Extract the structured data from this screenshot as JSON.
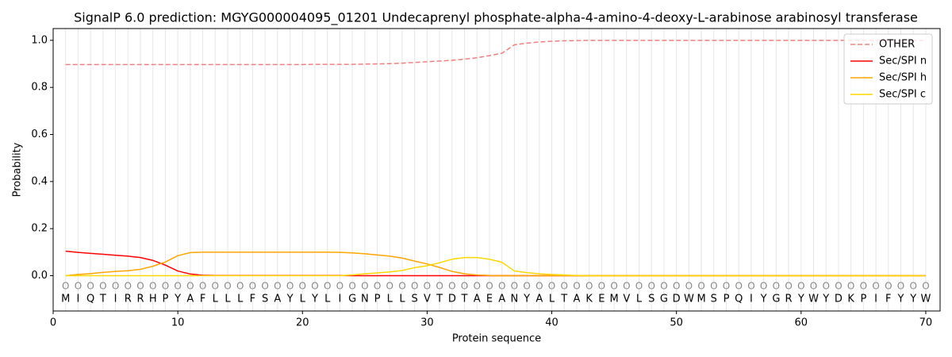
{
  "chart_data": {
    "type": "line",
    "title": "SignalP 6.0 prediction: MGYG000004095_01201 Undecaprenyl phosphate-alpha-4-amino-4-deoxy-L-arabinose arabinosyl transferase",
    "x_label": "Protein sequence",
    "y_label": "Probability",
    "x": [
      1,
      2,
      3,
      4,
      5,
      6,
      7,
      8,
      9,
      10,
      11,
      12,
      13,
      14,
      15,
      16,
      17,
      18,
      19,
      20,
      21,
      22,
      23,
      24,
      25,
      26,
      27,
      28,
      29,
      30,
      31,
      32,
      33,
      34,
      35,
      36,
      37,
      38,
      39,
      40,
      41,
      42,
      43,
      44,
      45,
      46,
      47,
      48,
      49,
      50,
      51,
      52,
      53,
      54,
      55,
      56,
      57,
      58,
      59,
      60,
      61,
      62,
      63,
      64,
      65,
      66,
      67,
      68,
      69,
      70
    ],
    "sequence": [
      "M",
      "I",
      "Q",
      "T",
      "I",
      "R",
      "R",
      "H",
      "P",
      "Y",
      "A",
      "F",
      "L",
      "L",
      "L",
      "F",
      "S",
      "A",
      "Y",
      "L",
      "Y",
      "L",
      "I",
      "G",
      "N",
      "P",
      "L",
      "L",
      "S",
      "V",
      "T",
      "D",
      "T",
      "A",
      "E",
      "A",
      "N",
      "Y",
      "A",
      "L",
      "T",
      "A",
      "K",
      "E",
      "M",
      "V",
      "L",
      "S",
      "G",
      "D",
      "W",
      "M",
      "S",
      "P",
      "Q",
      "I",
      "Y",
      "G",
      "R",
      "Y",
      "W",
      "Y",
      "D",
      "K",
      "P",
      "I",
      "F",
      "Y",
      "Y",
      "W"
    ],
    "states": [
      "O",
      "O",
      "O",
      "O",
      "O",
      "O",
      "O",
      "O",
      "O",
      "O",
      "O",
      "O",
      "O",
      "O",
      "O",
      "O",
      "O",
      "O",
      "O",
      "O",
      "O",
      "O",
      "O",
      "O",
      "O",
      "O",
      "O",
      "O",
      "O",
      "O",
      "O",
      "O",
      "O",
      "O",
      "O",
      "O",
      "O",
      "O",
      "O",
      "O",
      "O",
      "O",
      "O",
      "O",
      "O",
      "O",
      "O",
      "O",
      "O",
      "O",
      "O",
      "O",
      "O",
      "O",
      "O",
      "O",
      "O",
      "O",
      "O",
      "O",
      "O",
      "O",
      "O",
      "O",
      "O",
      "O",
      "O",
      "O",
      "O",
      "O"
    ],
    "series": [
      {
        "name": "OTHER",
        "color": "#f08080",
        "linestyle": "dashed",
        "values": [
          0.897,
          0.897,
          0.897,
          0.897,
          0.897,
          0.897,
          0.897,
          0.897,
          0.897,
          0.897,
          0.897,
          0.897,
          0.897,
          0.897,
          0.897,
          0.897,
          0.897,
          0.897,
          0.897,
          0.897,
          0.898,
          0.898,
          0.898,
          0.898,
          0.899,
          0.9,
          0.901,
          0.903,
          0.906,
          0.909,
          0.912,
          0.915,
          0.92,
          0.926,
          0.935,
          0.945,
          0.981,
          0.988,
          0.993,
          0.996,
          0.998,
          0.999,
          1.0,
          1.0,
          1.0,
          1.0,
          1.0,
          1.0,
          1.0,
          1.0,
          1.0,
          1.0,
          1.0,
          1.0,
          1.0,
          1.0,
          1.0,
          1.0,
          1.0,
          1.0,
          1.0,
          1.0,
          1.0,
          1.0,
          1.0,
          1.0,
          1.0,
          1.0,
          1.0,
          1.0
        ]
      },
      {
        "name": "Sec/SPI n",
        "color": "#ff0000",
        "linestyle": "solid",
        "values": [
          0.104,
          0.099,
          0.095,
          0.091,
          0.087,
          0.083,
          0.077,
          0.065,
          0.045,
          0.02,
          0.007,
          0.002,
          0.001,
          0.001,
          0.001,
          0.001,
          0.001,
          0.001,
          0.001,
          0.001,
          0.001,
          0.001,
          0.001,
          0,
          0,
          0,
          0,
          0,
          0,
          0,
          0,
          0,
          0,
          0,
          0,
          0,
          0,
          0,
          0,
          0,
          0,
          0,
          0,
          0,
          0,
          0,
          0,
          0,
          0,
          0,
          0,
          0,
          0,
          0,
          0,
          0,
          0,
          0,
          0,
          0,
          0,
          0,
          0,
          0,
          0,
          0,
          0,
          0,
          0,
          0
        ]
      },
      {
        "name": "Sec/SPI h",
        "color": "#ffa500",
        "linestyle": "solid",
        "values": [
          0.0,
          0.005,
          0.009,
          0.014,
          0.018,
          0.021,
          0.027,
          0.04,
          0.058,
          0.085,
          0.098,
          0.1,
          0.1,
          0.1,
          0.1,
          0.1,
          0.1,
          0.1,
          0.1,
          0.1,
          0.1,
          0.1,
          0.099,
          0.097,
          0.093,
          0.088,
          0.083,
          0.075,
          0.062,
          0.05,
          0.035,
          0.018,
          0.008,
          0.003,
          0.001,
          0,
          0,
          0,
          0,
          0,
          0,
          0,
          0,
          0,
          0,
          0,
          0,
          0,
          0,
          0,
          0,
          0,
          0,
          0,
          0,
          0,
          0,
          0,
          0,
          0,
          0,
          0,
          0,
          0,
          0,
          0,
          0,
          0,
          0,
          0
        ]
      },
      {
        "name": "Sec/SPI c",
        "color": "#ffd700",
        "linestyle": "solid",
        "values": [
          0,
          0,
          0,
          0,
          0,
          0,
          0,
          0,
          0,
          0,
          0,
          0,
          0,
          0,
          0,
          0,
          0,
          0,
          0,
          0,
          0,
          0,
          0,
          0.003,
          0.008,
          0.012,
          0.016,
          0.022,
          0.034,
          0.042,
          0.055,
          0.07,
          0.077,
          0.077,
          0.07,
          0.057,
          0.02,
          0.013,
          0.008,
          0.005,
          0.003,
          0.001,
          0,
          0,
          0,
          0,
          0,
          0,
          0,
          0,
          0,
          0,
          0,
          0,
          0,
          0,
          0,
          0,
          0,
          0,
          0,
          0,
          0,
          0,
          0,
          0,
          0,
          0,
          0,
          0
        ]
      }
    ],
    "xlim": [
      0,
      71.15
    ],
    "ylim": [
      -0.15,
      1.05
    ],
    "xticks": [
      0,
      10,
      20,
      30,
      40,
      50,
      60,
      70
    ],
    "yticks": [
      {
        "value": 0,
        "label": "0.0"
      },
      {
        "value": 0.2,
        "label": "0.2"
      },
      {
        "value": 0.4,
        "label": "0.4"
      },
      {
        "value": 0.6,
        "label": "0.6"
      },
      {
        "value": 0.8,
        "label": "0.8"
      },
      {
        "value": 1,
        "label": "1.0"
      }
    ],
    "grid": true,
    "legend": "upper right"
  }
}
